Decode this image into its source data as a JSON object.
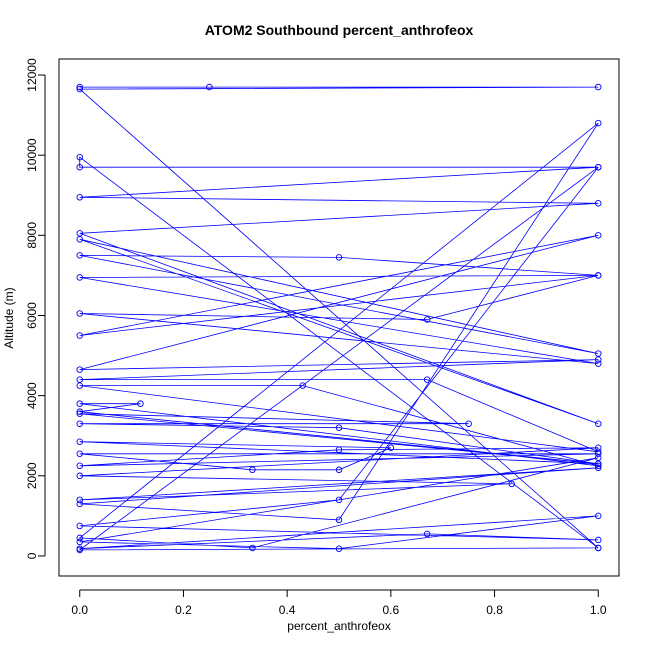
{
  "chart_data": {
    "type": "line",
    "title": "ATOM2 Southbound percent_anthrofeox",
    "xlabel": "percent_anthrofeox",
    "ylabel": "Altitude (m)",
    "xlim": [
      -0.04,
      1.04
    ],
    "ylim": [
      -500,
      12400
    ],
    "x_ticks": [
      0.0,
      0.2,
      0.4,
      0.6,
      0.8,
      1.0
    ],
    "x_tick_labels": [
      "0.0",
      "0.2",
      "0.4",
      "0.6",
      "0.8",
      "1.0"
    ],
    "y_ticks": [
      0,
      2000,
      4000,
      6000,
      8000,
      10000,
      12000
    ],
    "y_tick_labels": [
      "0",
      "2000",
      "4000",
      "6000",
      "8000",
      "10000",
      "12000"
    ],
    "grid": false,
    "legend": "none",
    "line_color": "#0000FF",
    "marker": "open-circle",
    "series": [
      {
        "x": [
          0,
          0.25,
          1,
          0,
          1,
          0,
          0,
          1,
          0,
          1,
          0,
          1,
          0,
          1,
          0,
          0.5,
          1,
          0,
          1,
          0,
          0.67,
          1,
          0,
          1,
          0,
          1,
          0,
          0.67,
          1,
          0,
          0.43,
          1,
          0,
          0.117,
          0,
          1,
          0,
          0.75,
          0,
          0.5,
          1,
          0,
          0.6,
          0.5,
          0.333,
          0,
          1,
          0,
          0.5,
          1,
          0,
          0.833,
          0,
          1,
          0,
          0.5,
          1,
          0,
          0.333,
          1,
          0,
          0.5,
          1,
          0,
          0.67,
          1,
          0,
          0.5,
          1,
          0,
          1
        ],
        "y": [
          11700,
          11700,
          11700,
          11650,
          200,
          9950,
          9700,
          9700,
          8950,
          8800,
          8050,
          3300,
          7900,
          5050,
          7500,
          7450,
          7000,
          6950,
          4800,
          6050,
          5900,
          7000,
          5500,
          8000,
          4650,
          4900,
          4400,
          4400,
          2600,
          4250,
          4250,
          2250,
          3800,
          3800,
          3600,
          2300,
          3550,
          3300,
          3300,
          3200,
          2300,
          2850,
          2700,
          2150,
          2150,
          2550,
          2550,
          2250,
          2650,
          2700,
          2000,
          1800,
          1400,
          2200,
          1300,
          900,
          10800,
          450,
          200,
          2450,
          350,
          180,
          1000,
          180,
          550,
          400,
          750,
          1400,
          9700,
          150,
          200
        ]
      }
    ]
  }
}
